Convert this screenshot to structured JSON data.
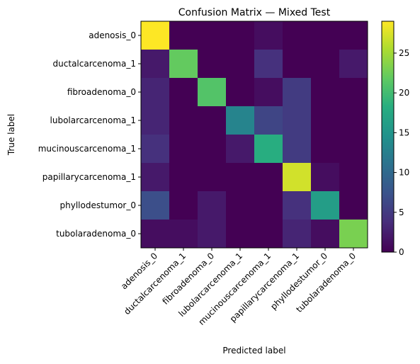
{
  "chart_data": {
    "type": "heatmap",
    "title": "Confusion Matrix — Mixed Test",
    "xlabel": "Predicted label",
    "ylabel": "True label",
    "colormap": "viridis",
    "vmin": 0,
    "vmax": 29,
    "colorbar_ticks": [
      "0",
      "5",
      "10",
      "15",
      "20",
      "25"
    ],
    "colorbar_tick_values": [
      0,
      5,
      10,
      15,
      20,
      25
    ],
    "x_categories": [
      "adenosis_0",
      "ductalcarcenoma_1",
      "fibroadenoma_0",
      "lubolarcarcenoma_1",
      "mucinouscarcenoma_1",
      "papillarycarcenoma_1",
      "phyllodestumor_0",
      "tubolaradenoma_0"
    ],
    "y_categories": [
      "adenosis_0",
      "ductalcarcenoma_1",
      "fibroadenoma_0",
      "lubolarcarcenoma_1",
      "mucinouscarcenoma_1",
      "papillarycarcenoma_1",
      "phyllodestumor_0",
      "tubolaradenoma_0"
    ],
    "matrix": [
      [
        29,
        0,
        0,
        0,
        1,
        0,
        0,
        0
      ],
      [
        2,
        22,
        0,
        0,
        4,
        0,
        0,
        2
      ],
      [
        3,
        0,
        21,
        0,
        1,
        5,
        0,
        0
      ],
      [
        3,
        0,
        0,
        13,
        6,
        5,
        0,
        0
      ],
      [
        4,
        0,
        0,
        2,
        18,
        5,
        0,
        0
      ],
      [
        2,
        0,
        0,
        0,
        0,
        27,
        1,
        0
      ],
      [
        7,
        0,
        2,
        0,
        0,
        4,
        16,
        0
      ],
      [
        1,
        1,
        2,
        0,
        0,
        3,
        1,
        23
      ]
    ]
  }
}
